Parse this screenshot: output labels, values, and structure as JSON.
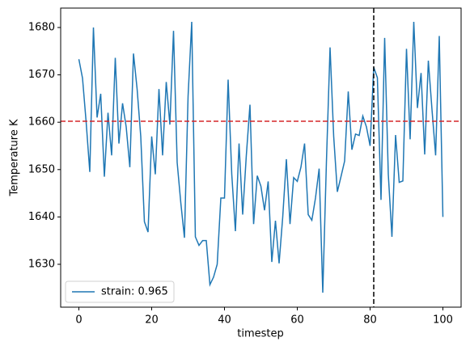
{
  "chart_data": {
    "type": "line",
    "xlabel": "timestep",
    "ylabel": "Temperature K",
    "x": [
      0,
      1,
      2,
      3,
      4,
      5,
      6,
      7,
      8,
      9,
      10,
      11,
      12,
      13,
      14,
      15,
      16,
      17,
      18,
      19,
      20,
      21,
      22,
      23,
      24,
      25,
      26,
      27,
      28,
      29,
      30,
      31,
      32,
      33,
      34,
      35,
      36,
      37,
      38,
      39,
      40,
      41,
      42,
      43,
      44,
      45,
      46,
      47,
      48,
      49,
      50,
      51,
      52,
      53,
      54,
      55,
      56,
      57,
      58,
      59,
      60,
      61,
      62,
      63,
      64,
      65,
      66,
      67,
      68,
      69,
      70,
      71,
      72,
      73,
      74,
      75,
      76,
      77,
      78,
      79,
      80,
      81,
      82,
      83,
      84,
      85,
      86,
      87,
      88,
      89,
      90,
      91,
      92,
      93,
      94,
      95,
      96,
      97,
      98,
      99,
      100
    ],
    "series": [
      {
        "name": "strain: 0.965",
        "color": "#1f77b4",
        "values": [
          1673.3,
          1669.3,
          1660,
          1649.5,
          1680,
          1661,
          1666,
          1648.5,
          1662,
          1653,
          1673.6,
          1655.5,
          1664,
          1659,
          1650.5,
          1674.5,
          1667,
          1657,
          1639,
          1636.8,
          1657,
          1649,
          1667,
          1653,
          1668.5,
          1659.5,
          1679.3,
          1651.5,
          1643,
          1635.6,
          1665.5,
          1681.2,
          1635.8,
          1634,
          1635,
          1635,
          1625.7,
          1627.3,
          1630,
          1644,
          1644,
          1669,
          1649,
          1637,
          1655.5,
          1640.5,
          1653,
          1663.7,
          1638.5,
          1648.7,
          1646.5,
          1641.4,
          1647.5,
          1630.5,
          1639.2,
          1630.2,
          1640,
          1652.2,
          1638.5,
          1648.3,
          1647.5,
          1650.5,
          1655.5,
          1640.5,
          1639.3,
          1644,
          1650.2,
          1624,
          1651.5,
          1675.8,
          1657,
          1645.3,
          1648.5,
          1651.8,
          1666.5,
          1654.2,
          1657.5,
          1657.2,
          1661.3,
          1659,
          1655,
          1671.6,
          1669.4,
          1643.6,
          1677.8,
          1649,
          1635.8,
          1657.3,
          1647.3,
          1647.6,
          1675.5,
          1656.4,
          1681.2,
          1663,
          1670.4,
          1653.2,
          1673,
          1662.7,
          1653,
          1678.2,
          1640
        ]
      }
    ],
    "hline": {
      "value": 1660.2,
      "color": "#d62728"
    },
    "vline": {
      "value": 81,
      "color": "#000000"
    },
    "xlim": [
      -5,
      105
    ],
    "ylim": [
      1620.95,
      1684.1
    ],
    "xticks": [
      0,
      20,
      40,
      60,
      80,
      100
    ],
    "yticks": [
      1630,
      1640,
      1650,
      1660,
      1670,
      1680
    ],
    "legend": "lower left"
  }
}
